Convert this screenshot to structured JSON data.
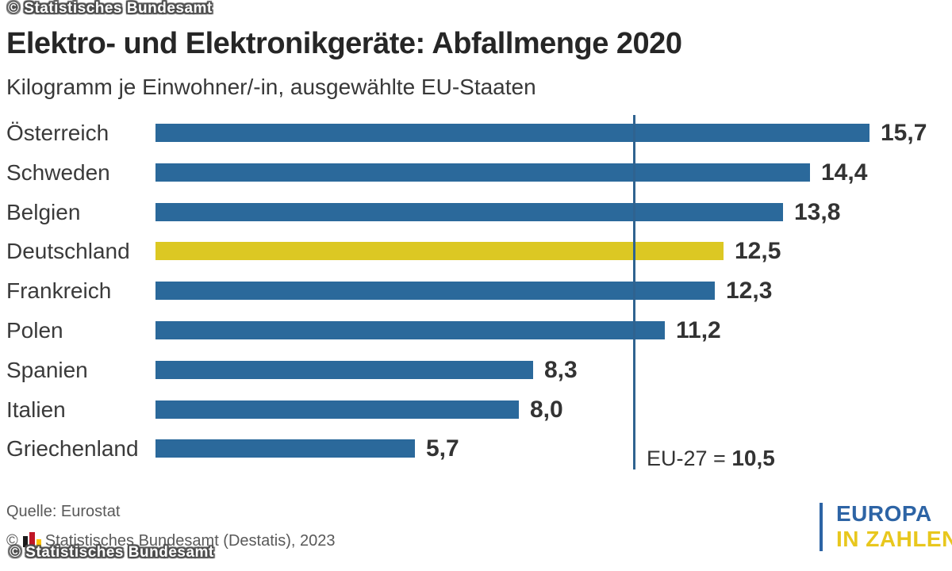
{
  "page": {
    "background": "#ffffff"
  },
  "header": {
    "title": "Elektro- und Elektronikgeräte: Abfallmenge 2020",
    "subtitle": "Kilogramm je Einwohner/-in, ausgewählte EU-Staaten"
  },
  "chart_data": {
    "type": "bar",
    "orientation": "horizontal",
    "title": "Elektro- und Elektronikgeräte: Abfallmenge 2020",
    "subtitle": "Kilogramm je Einwohner/-in, ausgewählte EU-Staaten",
    "categories": [
      "Österreich",
      "Schweden",
      "Belgien",
      "Deutschland",
      "Frankreich",
      "Polen",
      "Spanien",
      "Italien",
      "Griechenland"
    ],
    "values": [
      15.7,
      14.4,
      13.8,
      12.5,
      12.3,
      11.2,
      8.3,
      8.0,
      5.7
    ],
    "value_labels": [
      "15,7",
      "14,4",
      "13,8",
      "12,5",
      "12,3",
      "11,2",
      "8,3",
      "8,0",
      "5,7"
    ],
    "highlight_category": "Deutschland",
    "reference_line": {
      "label_prefix": "EU-27 = ",
      "value": 10.5,
      "value_label": "10,5"
    },
    "xlim": [
      0,
      17
    ],
    "grid": false,
    "legend": false,
    "ylabel": "",
    "xlabel": "Kilogramm je Einwohner/-in"
  },
  "colors": {
    "bar": "#2b699b",
    "bar_highlight": "#dcc823",
    "reference_line": "#2f6390",
    "title": "#262626",
    "text": "#3a3a3a",
    "value": "#333333",
    "footer": "#595959",
    "logo_blue": "#2d64a5",
    "logo_yellow": "#e8c71d"
  },
  "footer": {
    "source": "Quelle: Eurostat",
    "copyright_prefix": "©",
    "copyright_text": "Statistisches Bundesamt (Destatis), 2023"
  },
  "watermark": {
    "text": "© Statistisches Bundesamt"
  },
  "logo": {
    "line1": "EUROPA",
    "line2": "IN ZAHLEN"
  }
}
